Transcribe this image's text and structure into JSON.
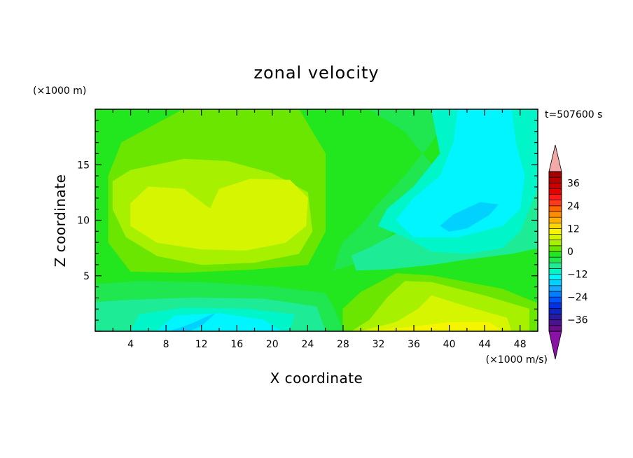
{
  "chart_data": {
    "type": "heatmap",
    "title": "zonal velocity",
    "xlabel": "X coordinate",
    "ylabel": "Z coordinate",
    "x_unit": "(×1000 m/s)",
    "y_unit": "(×1000 m)",
    "time_label": "t=507600 s",
    "xlim": [
      0,
      50
    ],
    "ylim": [
      0,
      20
    ],
    "x_ticks": [
      "4",
      "8",
      "12",
      "16",
      "20",
      "24",
      "28",
      "32",
      "36",
      "40",
      "44",
      "48"
    ],
    "y_ticks": [
      "5",
      "10",
      "15"
    ],
    "colorbar": {
      "labels": [
        "36",
        "24",
        "12",
        "0",
        "−12",
        "−24",
        "−36"
      ],
      "levels": [
        -42,
        -39,
        -36,
        -33,
        -30,
        -27,
        -24,
        -21,
        -18,
        -15,
        -12,
        -9,
        -6,
        -3,
        0,
        3,
        6,
        9,
        12,
        15,
        18,
        21,
        24,
        27,
        30,
        33,
        36,
        39,
        42
      ],
      "colors": [
        "#6a0f8a",
        "#4b128f",
        "#2a1a9e",
        "#0f24bf",
        "#0031e6",
        "#0055ff",
        "#007eff",
        "#17a8ff",
        "#00d1ff",
        "#00f5ff",
        "#00f5c8",
        "#1eeb96",
        "#20e650",
        "#22e61e",
        "#6be600",
        "#a6f000",
        "#d6f500",
        "#f5f500",
        "#ffd700",
        "#ffb000",
        "#ff8c00",
        "#ff6600",
        "#ff3a1a",
        "#ff1a1a",
        "#e60000",
        "#cc0000",
        "#b80000",
        "#a30000"
      ],
      "over_color": "#f4a9a9",
      "under_color": "#8a12a6"
    },
    "regions": [
      {
        "level": 0,
        "color": "#22e61e",
        "points": [
          [
            0,
            0
          ],
          [
            50,
            0
          ],
          [
            50,
            20
          ],
          [
            0,
            20
          ]
        ]
      },
      {
        "level": 3,
        "color": "#6be600",
        "points": [
          [
            3,
            17
          ],
          [
            10,
            20
          ],
          [
            23,
            20
          ],
          [
            26,
            16
          ],
          [
            26,
            9
          ],
          [
            24,
            6
          ],
          [
            18,
            5.6
          ],
          [
            10,
            5.3
          ],
          [
            4,
            5.4
          ],
          [
            1.5,
            8
          ],
          [
            1.5,
            14
          ]
        ]
      },
      {
        "level": 6,
        "color": "#a6f000",
        "points": [
          [
            2,
            13.5
          ],
          [
            4,
            14.5
          ],
          [
            10,
            15.5
          ],
          [
            15,
            15.3
          ],
          [
            20,
            14.2
          ],
          [
            24,
            12.5
          ],
          [
            24.5,
            9
          ],
          [
            23,
            7
          ],
          [
            18,
            6.2
          ],
          [
            12,
            6
          ],
          [
            7,
            6.8
          ],
          [
            3.5,
            8.5
          ],
          [
            2,
            11
          ]
        ]
      },
      {
        "level": 9,
        "color": "#d6f500",
        "points": [
          [
            4,
            11.5
          ],
          [
            6,
            13
          ],
          [
            10,
            12.8
          ],
          [
            13,
            11
          ],
          [
            14,
            12.8
          ],
          [
            17.5,
            13.7
          ],
          [
            22,
            13.6
          ],
          [
            24,
            12
          ],
          [
            23.8,
            9.5
          ],
          [
            21.5,
            8
          ],
          [
            17,
            7.3
          ],
          [
            12,
            7.4
          ],
          [
            7,
            8
          ],
          [
            4,
            9.5
          ]
        ]
      },
      {
        "level": 0,
        "color": "#22e61e",
        "points": [
          [
            0,
            0
          ],
          [
            50,
            0
          ],
          [
            50,
            3
          ],
          [
            46,
            4.5
          ],
          [
            38,
            5.8
          ],
          [
            33,
            5.5
          ],
          [
            29,
            4
          ],
          [
            25,
            3.5
          ],
          [
            18,
            4
          ],
          [
            10,
            4.5
          ],
          [
            5,
            4.8
          ],
          [
            0,
            4.6
          ]
        ]
      },
      {
        "level": -3,
        "color": "#20e650",
        "points": [
          [
            0,
            0
          ],
          [
            28,
            0
          ],
          [
            27,
            2
          ],
          [
            26,
            3.4
          ],
          [
            20,
            4
          ],
          [
            12,
            4.4
          ],
          [
            5,
            4.5
          ],
          [
            0,
            4.2
          ]
        ]
      },
      {
        "level": -6,
        "color": "#1eeb96",
        "points": [
          [
            0,
            0
          ],
          [
            26,
            0
          ],
          [
            25,
            2.2
          ],
          [
            19,
            2.9
          ],
          [
            11,
            3
          ],
          [
            4,
            2.8
          ],
          [
            0,
            2.6
          ]
        ]
      },
      {
        "level": -9,
        "color": "#00f5c8",
        "points": [
          [
            4,
            0
          ],
          [
            22,
            0
          ],
          [
            22.5,
            1.5
          ],
          [
            17,
            2
          ],
          [
            10,
            2.1
          ],
          [
            5,
            1.5
          ]
        ]
      },
      {
        "level": -12,
        "color": "#00f5ff",
        "points": [
          [
            7,
            0
          ],
          [
            21,
            0
          ],
          [
            19,
            1
          ],
          [
            14,
            1.6
          ],
          [
            9,
            1.4
          ]
        ]
      },
      {
        "level": -15,
        "color": "#00d1ff",
        "points": [
          [
            8.5,
            0
          ],
          [
            11,
            0.7
          ],
          [
            13.5,
            1.6
          ],
          [
            12,
            0.5
          ],
          [
            10.5,
            0
          ]
        ]
      },
      {
        "level": 3,
        "color": "#6be600",
        "points": [
          [
            28,
            0
          ],
          [
            50,
            0
          ],
          [
            50,
            2.5
          ],
          [
            46,
            3.8
          ],
          [
            38,
            5
          ],
          [
            34,
            5.2
          ],
          [
            30,
            3.5
          ],
          [
            28,
            2
          ]
        ]
      },
      {
        "level": 6,
        "color": "#a6f000",
        "points": [
          [
            29,
            0
          ],
          [
            49,
            0
          ],
          [
            49,
            2
          ],
          [
            44,
            3.2
          ],
          [
            38,
            4.4
          ],
          [
            35,
            4.5
          ],
          [
            33,
            3
          ],
          [
            31,
            1
          ]
        ]
      },
      {
        "level": 9,
        "color": "#d6f500",
        "points": [
          [
            30,
            0
          ],
          [
            47,
            0
          ],
          [
            46.5,
            1.2
          ],
          [
            42,
            2.2
          ],
          [
            38,
            3.2
          ],
          [
            36.5,
            2
          ],
          [
            34,
            0.8
          ]
        ]
      },
      {
        "level": 12,
        "color": "#f5f500",
        "points": [
          [
            31,
            0
          ],
          [
            46,
            0
          ],
          [
            44.5,
            0.8
          ],
          [
            40,
            0.8
          ],
          [
            36,
            0.4
          ]
        ]
      },
      {
        "level": -3,
        "color": "#20e650",
        "points": [
          [
            31,
            20
          ],
          [
            40,
            20
          ],
          [
            38,
            17
          ],
          [
            35,
            14
          ],
          [
            32,
            11.5
          ],
          [
            30,
            9.5
          ],
          [
            28,
            8
          ],
          [
            27.5,
            7
          ],
          [
            27,
            5.5
          ],
          [
            29,
            6
          ],
          [
            31,
            7
          ],
          [
            33,
            8.5
          ],
          [
            35,
            10
          ],
          [
            37,
            11
          ],
          [
            39,
            12
          ],
          [
            38,
            15
          ],
          [
            35,
            18
          ]
        ]
      },
      {
        "level": -6,
        "color": "#1eeb96",
        "points": [
          [
            31.5,
            20
          ],
          [
            45,
            20
          ],
          [
            44,
            17
          ],
          [
            42,
            13
          ],
          [
            41,
            11
          ],
          [
            39,
            10
          ],
          [
            35,
            9.2
          ],
          [
            31,
            7.5
          ],
          [
            29,
            6.8
          ],
          [
            29.5,
            5.5
          ],
          [
            33,
            5.6
          ],
          [
            38,
            6
          ],
          [
            42,
            6.5
          ],
          [
            47,
            7
          ],
          [
            50,
            7.5
          ],
          [
            50,
            20
          ]
        ]
      },
      {
        "level": -9,
        "color": "#00f5c8",
        "points": [
          [
            38,
            20
          ],
          [
            50,
            20
          ],
          [
            50,
            13
          ],
          [
            49,
            11
          ],
          [
            48,
            9
          ],
          [
            46,
            7.5
          ],
          [
            42,
            7
          ],
          [
            38,
            7.2
          ],
          [
            35,
            8.5
          ],
          [
            32,
            9.5
          ],
          [
            33,
            11
          ],
          [
            36,
            13
          ],
          [
            39,
            16
          ]
        ]
      },
      {
        "level": -12,
        "color": "#00f5ff",
        "points": [
          [
            41,
            20
          ],
          [
            47,
            20
          ],
          [
            47.5,
            17
          ],
          [
            48.5,
            14
          ],
          [
            48,
            11
          ],
          [
            46,
            9.5
          ],
          [
            41,
            8.5
          ],
          [
            36,
            8.5
          ],
          [
            34,
            10
          ],
          [
            36,
            12
          ],
          [
            39,
            14
          ],
          [
            40.5,
            17
          ]
        ]
      },
      {
        "level": -15,
        "color": "#00d1ff",
        "points": [
          [
            39,
            9.5
          ],
          [
            40,
            9
          ],
          [
            42,
            9.3
          ],
          [
            44.5,
            10.5
          ],
          [
            45.5,
            11.4
          ],
          [
            43.5,
            11.6
          ],
          [
            40.5,
            10.5
          ]
        ]
      }
    ]
  }
}
